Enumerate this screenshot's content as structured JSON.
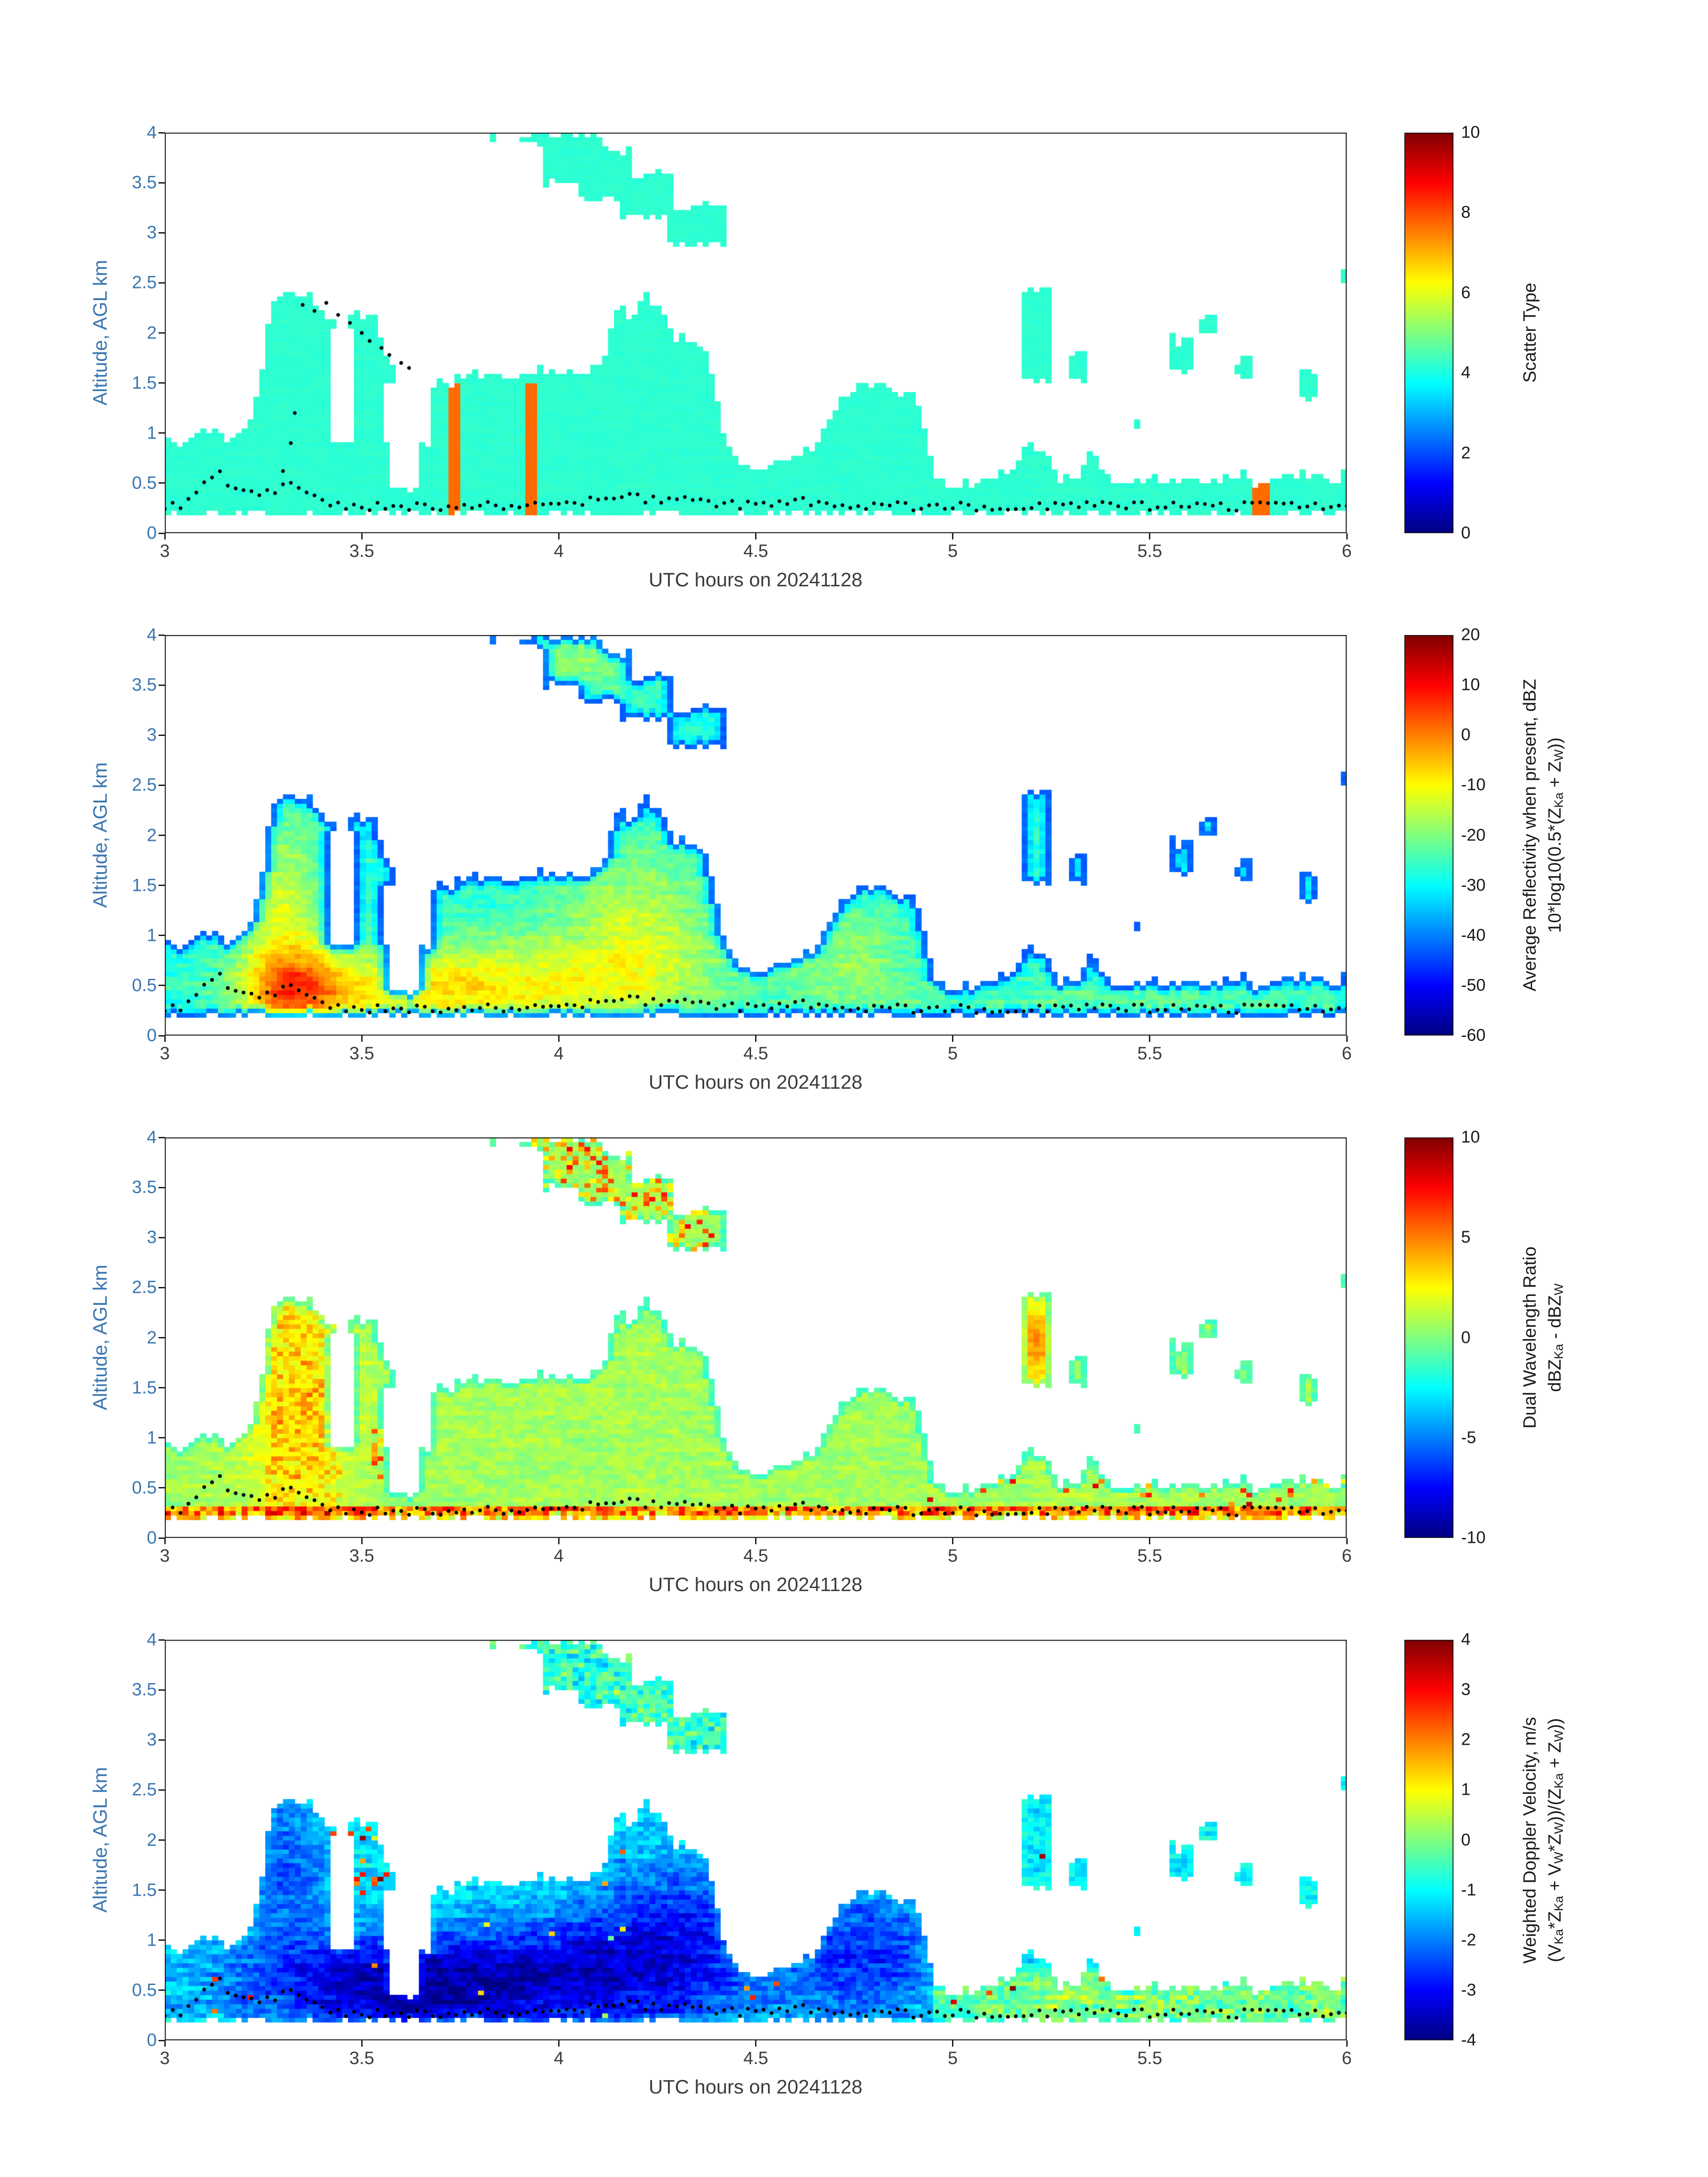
{
  "chart_data": {
    "type": "heatmap",
    "title": "",
    "x_axis": {
      "label": "UTC hours on 20241128",
      "min": 3,
      "max": 6,
      "ticks": [
        3,
        3.5,
        4,
        4.5,
        5,
        5.5,
        6
      ],
      "tick_labels": [
        "3",
        "3.5",
        "4",
        "4.5",
        "5",
        "5.5",
        "6"
      ]
    },
    "y_axis": {
      "label": "Altitude, AGL km",
      "min": 0,
      "max": 4,
      "ticks": [
        0,
        0.5,
        1,
        1.5,
        2,
        2.5,
        3,
        3.5,
        4
      ],
      "tick_labels": [
        "0",
        "0.5",
        "1",
        "1.5",
        "2",
        "2.5",
        "3",
        "3.5",
        "4"
      ]
    },
    "colors": {
      "y_axis_text": "#3a76b0",
      "x_axis_text": "#3c3c3c",
      "axis_line": "#1a1a1a",
      "dots": "#000000",
      "background": "#ffffff",
      "stripe_orange": "#f04010",
      "cloud_teal": "#40e6c8"
    },
    "grid": {
      "nt": 200,
      "na": 88,
      "seed": 1337
    },
    "cloud_mask": {
      "deck_bottom": 0.2,
      "deck_top_profile": [
        [
          3.0,
          1.0
        ],
        [
          3.04,
          0.85
        ],
        [
          3.08,
          1.02
        ],
        [
          3.12,
          1.08
        ],
        [
          3.16,
          0.92
        ],
        [
          3.2,
          1.05
        ],
        [
          3.24,
          1.5
        ],
        [
          3.27,
          2.35
        ],
        [
          3.31,
          2.45
        ],
        [
          3.36,
          2.38
        ],
        [
          3.4,
          2.25
        ],
        [
          3.44,
          2.1
        ],
        [
          3.48,
          2.2
        ],
        [
          3.53,
          2.28
        ],
        [
          3.56,
          1.8
        ],
        [
          3.59,
          1.5
        ],
        [
          3.63,
          1.25
        ],
        [
          3.67,
          1.45
        ],
        [
          3.72,
          1.55
        ],
        [
          3.78,
          1.62
        ],
        [
          3.84,
          1.58
        ],
        [
          3.9,
          1.55
        ],
        [
          3.96,
          1.63
        ],
        [
          4.02,
          1.58
        ],
        [
          4.08,
          1.62
        ],
        [
          4.12,
          1.8
        ],
        [
          4.15,
          2.25
        ],
        [
          4.19,
          2.15
        ],
        [
          4.22,
          2.38
        ],
        [
          4.26,
          2.2
        ],
        [
          4.3,
          1.95
        ],
        [
          4.34,
          1.92
        ],
        [
          4.38,
          1.75
        ],
        [
          4.41,
          1.1
        ],
        [
          4.44,
          0.8
        ],
        [
          4.48,
          0.68
        ],
        [
          4.52,
          0.62
        ],
        [
          4.56,
          0.78
        ],
        [
          4.6,
          0.72
        ],
        [
          4.64,
          0.85
        ],
        [
          4.68,
          1.05
        ],
        [
          4.72,
          1.35
        ],
        [
          4.76,
          1.48
        ],
        [
          4.8,
          1.52
        ],
        [
          4.85,
          1.45
        ],
        [
          4.9,
          1.35
        ],
        [
          4.93,
          1.05
        ],
        [
          4.96,
          0.55
        ],
        [
          5.0,
          0.48
        ],
        [
          5.05,
          0.52
        ],
        [
          5.1,
          0.58
        ],
        [
          5.15,
          0.62
        ],
        [
          5.19,
          0.95
        ],
        [
          5.23,
          0.8
        ],
        [
          5.27,
          0.62
        ],
        [
          5.31,
          0.58
        ],
        [
          5.35,
          0.78
        ],
        [
          5.39,
          0.6
        ],
        [
          5.43,
          0.52
        ],
        [
          5.47,
          0.56
        ],
        [
          5.51,
          0.54
        ],
        [
          5.55,
          0.5
        ],
        [
          5.6,
          0.56
        ],
        [
          5.65,
          0.5
        ],
        [
          5.7,
          0.62
        ],
        [
          5.75,
          0.56
        ],
        [
          5.8,
          0.5
        ],
        [
          5.85,
          0.56
        ],
        [
          5.9,
          0.62
        ],
        [
          5.95,
          0.55
        ],
        [
          6.0,
          0.6
        ]
      ],
      "holes": [
        {
          "t": [
            3.42,
            3.485
          ],
          "a": [
            0.9,
            2.05
          ]
        },
        {
          "t": [
            3.55,
            3.67
          ],
          "a": [
            0.9,
            1.5
          ]
        },
        {
          "t": [
            3.57,
            3.64
          ],
          "a": [
            0.45,
            0.9
          ]
        }
      ],
      "extra_regions": [
        {
          "t": [
            3.955,
            4.105
          ],
          "a": [
            3.5,
            4.0
          ]
        },
        {
          "t": [
            3.9,
            3.96
          ],
          "a": [
            3.9,
            4.0
          ]
        },
        {
          "t": [
            4.05,
            4.19
          ],
          "a": [
            3.35,
            3.87
          ]
        },
        {
          "t": [
            4.16,
            4.285
          ],
          "a": [
            3.15,
            3.62
          ]
        },
        {
          "t": [
            4.27,
            4.42
          ],
          "a": [
            2.88,
            3.28
          ]
        },
        {
          "t": [
            3.815,
            3.845
          ],
          "a": [
            3.93,
            4.0
          ]
        },
        {
          "t": [
            4.44,
            4.46
          ],
          "a": [
            3.05,
            3.1
          ]
        },
        {
          "t": [
            5.17,
            5.245
          ],
          "a": [
            1.55,
            2.42
          ]
        },
        {
          "t": [
            5.3,
            5.345
          ],
          "a": [
            1.55,
            1.82
          ]
        },
        {
          "t": [
            5.55,
            5.605
          ],
          "a": [
            1.62,
            1.95
          ]
        },
        {
          "t": [
            5.63,
            5.665
          ],
          "a": [
            2.0,
            2.18
          ]
        },
        {
          "t": [
            5.72,
            5.765
          ],
          "a": [
            1.55,
            1.78
          ]
        },
        {
          "t": [
            5.88,
            5.925
          ],
          "a": [
            1.33,
            1.62
          ]
        },
        {
          "t": [
            5.985,
            6.0
          ],
          "a": [
            2.48,
            2.65
          ]
        },
        {
          "t": [
            5.46,
            5.48
          ],
          "a": [
            1.05,
            1.12
          ]
        }
      ],
      "ragged_top_dropout": 0.3
    },
    "dots": {
      "baseline_km": 0.27,
      "jitter_km": 0.045,
      "t_step": 0.02,
      "bumps": [
        {
          "c": 3.13,
          "s": 0.035,
          "amp": 0.32
        },
        {
          "c": 3.22,
          "s": 0.03,
          "amp": 0.12
        },
        {
          "c": 3.32,
          "s": 0.04,
          "amp": 0.22
        },
        {
          "c": 4.2,
          "s": 0.12,
          "amp": 0.08
        },
        {
          "c": 4.62,
          "s": 0.05,
          "amp": 0.05
        }
      ],
      "panel_extras": {
        "0": [
          [
            3.3,
            0.62
          ],
          [
            3.32,
            0.9
          ],
          [
            3.33,
            1.2
          ],
          [
            3.35,
            2.28
          ],
          [
            3.38,
            2.22
          ],
          [
            3.41,
            2.3
          ],
          [
            3.44,
            2.18
          ],
          [
            3.47,
            2.1
          ],
          [
            3.5,
            2.0
          ],
          [
            3.52,
            1.92
          ],
          [
            3.55,
            1.85
          ],
          [
            3.57,
            1.78
          ],
          [
            3.6,
            1.7
          ],
          [
            3.62,
            1.65
          ]
        ]
      }
    },
    "panels": [
      {
        "name": "Scatter Type",
        "colorbar": {
          "min": 0,
          "max": 10,
          "tick_values": [
            10,
            8,
            6,
            4,
            2,
            0
          ],
          "tick_labels": [
            "10",
            "8",
            "6",
            "4",
            "2",
            "0"
          ],
          "title_lines": [
            "Scatter Type"
          ]
        },
        "field": {
          "base": 4.2,
          "noise": 0.1,
          "edge_value": null,
          "edge_width": 0,
          "blobs": [],
          "rects": [],
          "sets": [
            {
              "t": [
                3.72,
                3.745
              ],
              "a": [
                0.2,
                1.52
              ],
              "set": 7.7
            },
            {
              "t": [
                3.92,
                3.945
              ],
              "a": [
                0.2,
                1.52
              ],
              "set": 7.7
            },
            {
              "t": [
                5.765,
                5.805
              ],
              "a": [
                0.2,
                0.52
              ],
              "set": 7.7
            }
          ],
          "clamp": [
            0,
            10
          ]
        }
      },
      {
        "name": "Average Reflectivity",
        "colorbar": {
          "min": -60,
          "max": 20,
          "tick_values": [
            20,
            10,
            0,
            -10,
            -20,
            -30,
            -40,
            -50,
            -60
          ],
          "tick_labels": [
            "20",
            "10",
            "0",
            "-10",
            "-20",
            "-30",
            "-40",
            "-50",
            "-60"
          ],
          "title_lines": [
            "Average Reflectivity when present, dBZ",
            "10*log10(0.5*(Z<sub>Ka</sub> + Z<sub>W</sub>))"
          ]
        },
        "field": {
          "base": -27,
          "noise": 5,
          "edge_value": -53,
          "edge_width": 2.4,
          "blobs": [
            {
              "c": [
                3.33,
                0.45
              ],
              "s": [
                0.1,
                0.3
              ],
              "amp": 25
            },
            {
              "c": [
                3.3,
                1.3
              ],
              "s": [
                0.07,
                0.55
              ],
              "amp": 13
            },
            {
              "c": [
                3.9,
                0.55
              ],
              "s": [
                0.33,
                0.33
              ],
              "amp": 13
            },
            {
              "c": [
                4.2,
                1.1
              ],
              "s": [
                0.14,
                0.55
              ],
              "amp": 11
            },
            {
              "c": [
                4.75,
                0.75
              ],
              "s": [
                0.12,
                0.4
              ],
              "amp": 8
            },
            {
              "c": [
                3.65,
                0.4
              ],
              "s": [
                0.2,
                0.25
              ],
              "amp": 10
            },
            {
              "c": [
                4.05,
                3.75
              ],
              "s": [
                0.1,
                0.2
              ],
              "amp": 9
            },
            {
              "c": [
                5.5,
                0.3
              ],
              "s": [
                0.45,
                0.18
              ],
              "amp": 4
            }
          ],
          "rects": [],
          "sets": [],
          "clamp": [
            -58,
            18
          ]
        }
      },
      {
        "name": "Dual Wavelength Ratio",
        "colorbar": {
          "min": -10,
          "max": 10,
          "tick_values": [
            10,
            5,
            0,
            -5,
            -10
          ],
          "tick_labels": [
            "10",
            "5",
            "0",
            "-5",
            "-10"
          ],
          "title_lines": [
            "Dual Wavelength Ratio",
            "dBZ<sub>Ka</sub> - dBZ<sub>W</sub>"
          ]
        },
        "field": {
          "base": 0.7,
          "noise": 1.1,
          "edge_value": -6.5,
          "edge_width": 1.3,
          "blobs": [
            {
              "c": [
                3.34,
                1.2
              ],
              "s": [
                0.1,
                0.8
              ],
              "amp": 2.2
            },
            {
              "c": [
                5.21,
                1.95
              ],
              "s": [
                0.035,
                0.3
              ],
              "amp": 4.0
            }
          ],
          "rects": [
            {
              "t": [
                3.0,
                6.0
              ],
              "a": [
                0.0,
                0.33
              ],
              "add": [
                2.0,
                7.5
              ],
              "prob": 1.0
            },
            {
              "t": [
                3.7,
                4.4
              ],
              "a": [
                2.8,
                4.0
              ],
              "add": [
                1.5,
                7.0
              ],
              "prob": 0.4
            },
            {
              "t": [
                4.9,
                6.0
              ],
              "a": [
                0.33,
                0.6
              ],
              "add": [
                3.0,
                8.0
              ],
              "prob": 0.06
            },
            {
              "t": [
                3.26,
                3.45
              ],
              "a": [
                0.3,
                2.3
              ],
              "add": [
                0.5,
                2.5
              ],
              "prob": 0.5
            },
            {
              "t": [
                3.52,
                3.56
              ],
              "a": [
                0.6,
                1.1
              ],
              "add": [
                3.0,
                6.0
              ],
              "prob": 0.5
            }
          ],
          "sets": [],
          "clamp": [
            -10,
            10
          ]
        }
      },
      {
        "name": "Weighted Doppler Velocity",
        "colorbar": {
          "min": -4,
          "max": 4,
          "tick_values": [
            4,
            3,
            2,
            1,
            0,
            -1,
            -2,
            -3,
            -4
          ],
          "tick_labels": [
            "4",
            "3",
            "2",
            "1",
            "0",
            "-1",
            "-2",
            "-3",
            "-4"
          ],
          "title_lines": [
            "Weighted Doppler Velocity, m/s",
            "(V<sub>Ka</sub>*Z<sub>Ka</sub> + V<sub>W</sub>*Z<sub>W</sub>))/(Z<sub>Ka</sub> + Z<sub>W</sub>))"
          ]
        },
        "field": {
          "base": -1.1,
          "noise": 0.8,
          "edge_value": -0.5,
          "edge_width": 1.2,
          "blobs": [
            {
              "c": [
                3.55,
                0.55
              ],
              "s": [
                0.28,
                0.38
              ],
              "amp": -2.0
            },
            {
              "c": [
                4.0,
                0.6
              ],
              "s": [
                0.3,
                0.45
              ],
              "amp": -1.6
            },
            {
              "c": [
                4.3,
                1.1
              ],
              "s": [
                0.18,
                0.6
              ],
              "amp": -1.4
            },
            {
              "c": [
                4.78,
                0.85
              ],
              "s": [
                0.14,
                0.5
              ],
              "amp": -1.5
            },
            {
              "c": [
                3.3,
                1.8
              ],
              "s": [
                0.1,
                0.6
              ],
              "amp": -1.2
            }
          ],
          "rects": [
            {
              "t": [
                4.95,
                6.0
              ],
              "a": [
                0.0,
                0.7
              ],
              "add": [
                0.6,
                1.4
              ],
              "prob": 1.0
            },
            {
              "t": [
                3.7,
                4.45
              ],
              "a": [
                2.8,
                4.0
              ],
              "add": [
                0.3,
                1.2
              ],
              "prob": 0.7
            },
            {
              "t": [
                3.42,
                3.6
              ],
              "a": [
                1.4,
                2.3
              ],
              "add": [
                2.5,
                5.0
              ],
              "prob": 0.12
            },
            {
              "t": [
                3.0,
                6.0
              ],
              "a": [
                0.0,
                4.0
              ],
              "add": [
                3.0,
                5.5
              ],
              "prob": 0.006
            }
          ],
          "sets": [],
          "clamp": [
            -4,
            4
          ]
        }
      }
    ]
  }
}
